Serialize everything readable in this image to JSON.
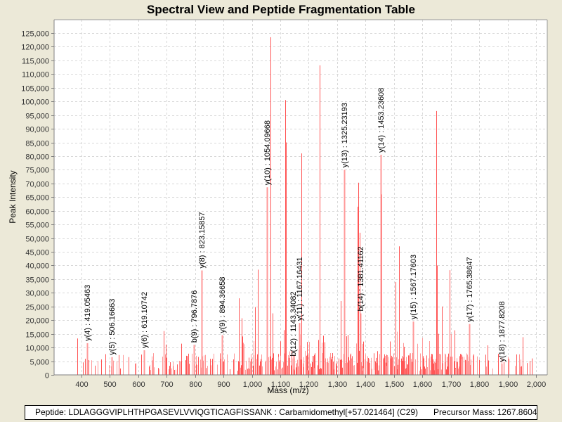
{
  "window": {
    "background": "#ECE9D8"
  },
  "info": {
    "peptide_label": "Peptide:",
    "peptide": "LDLAGGGVIPLHTHPGASEVLVVIQGTICAGFISSANK",
    "modification": "Carbamidomethyl[+57.021464] (C29)",
    "precursor_label": "Precursor Mass:",
    "precursor_mass": "1267.8604"
  },
  "chart_data": {
    "type": "bar",
    "subtype": "mass-spectrum-stick",
    "title": "Spectral View and Peptide Fragmentation Table",
    "xlabel": "Mass (m/z)",
    "ylabel": "Peak Intensity",
    "xlim": [
      303.6,
      2039.6
    ],
    "ylim": [
      0,
      129900
    ],
    "grid": true,
    "legend": "none",
    "x_ticks": [
      400,
      500,
      600,
      700,
      800,
      900,
      1000,
      1100,
      1200,
      1300,
      1400,
      1500,
      1600,
      1700,
      1800,
      1900,
      2000
    ],
    "x_tick_labels": [
      "400",
      "500",
      "600",
      "700",
      "800",
      "900",
      "1,000",
      "1,100",
      "1,200",
      "1,300",
      "1,400",
      "1,500",
      "1,600",
      "1,700",
      "1,800",
      "1,900",
      "2,000"
    ],
    "y_ticks": [
      0,
      5000,
      10000,
      15000,
      20000,
      25000,
      30000,
      35000,
      40000,
      45000,
      50000,
      55000,
      60000,
      65000,
      70000,
      75000,
      80000,
      85000,
      90000,
      95000,
      100000,
      105000,
      110000,
      115000,
      120000,
      125000
    ],
    "y_tick_labels": [
      "0",
      "5,000",
      "10,000",
      "15,000",
      "20,000",
      "25,000",
      "30,000",
      "35,000",
      "40,000",
      "45,000",
      "50,000",
      "55,000",
      "60,000",
      "65,000",
      "70,000",
      "75,000",
      "80,000",
      "85,000",
      "90,000",
      "95,000",
      "100,000",
      "105,000",
      "110,000",
      "115,000",
      "120,000",
      "125,000"
    ],
    "peak_color": "#FF5555",
    "peak_color_light": "#FF9999",
    "annotated_peaks": [
      {
        "label": "y(4) : 419.05463",
        "mz": 419.05,
        "intensity": 11600
      },
      {
        "label": "y(5) : 506.16663",
        "mz": 506.17,
        "intensity": 6500
      },
      {
        "label": "y(6) : 619.10742",
        "mz": 619.11,
        "intensity": 9000
      },
      {
        "label": "b(9) : 796.7876",
        "mz": 796.79,
        "intensity": 11000
      },
      {
        "label": "y(8) : 823.15857",
        "mz": 823.16,
        "intensity": 38200
      },
      {
        "label": "y(9) : 894.36658",
        "mz": 894.37,
        "intensity": 14500
      },
      {
        "label": "y(10) : 1054.09668",
        "mz": 1054.1,
        "intensity": 68600
      },
      {
        "label": "b(12) : 1143.34082",
        "mz": 1143.34,
        "intensity": 6000
      },
      {
        "label": "y(11) : 1167.16431",
        "mz": 1167.16,
        "intensity": 19000
      },
      {
        "label": "y(13) : 1325.23193",
        "mz": 1325.23,
        "intensity": 75000
      },
      {
        "label": "b(14) : 1381.41162",
        "mz": 1381.41,
        "intensity": 22500
      },
      {
        "label": "y(14) : 1453.23608",
        "mz": 1453.24,
        "intensity": 80500
      },
      {
        "label": "y(15) : 1567.17603",
        "mz": 1567.18,
        "intensity": 19500
      },
      {
        "label": "y(17) : 1765.38647",
        "mz": 1765.39,
        "intensity": 18600
      },
      {
        "label": "y(18) : 1877.8208",
        "mz": 1877.82,
        "intensity": 4000
      }
    ],
    "major_peaks": [
      {
        "mz": 384,
        "intensity": 13300
      },
      {
        "mz": 412,
        "intensity": 5900
      },
      {
        "mz": 426,
        "intensity": 5400
      },
      {
        "mz": 689,
        "intensity": 16000
      },
      {
        "mz": 697,
        "intensity": 11100
      },
      {
        "mz": 752,
        "intensity": 11400
      },
      {
        "mz": 955,
        "intensity": 28000
      },
      {
        "mz": 965,
        "intensity": 20700
      },
      {
        "mz": 1012,
        "intensity": 24800
      },
      {
        "mz": 1020,
        "intensity": 38500
      },
      {
        "mz": 1066,
        "intensity": 123500
      },
      {
        "mz": 1072,
        "intensity": 22500
      },
      {
        "mz": 1118,
        "intensity": 100500
      },
      {
        "mz": 1120,
        "intensity": 85000
      },
      {
        "mz": 1174,
        "intensity": 81000
      },
      {
        "mz": 1238,
        "intensity": 113200
      },
      {
        "mz": 1312,
        "intensity": 27000
      },
      {
        "mz": 1371,
        "intensity": 61500
      },
      {
        "mz": 1375,
        "intensity": 70300
      },
      {
        "mz": 1380,
        "intensity": 52000
      },
      {
        "mz": 1455,
        "intensity": 66000
      },
      {
        "mz": 1505,
        "intensity": 34000
      },
      {
        "mz": 1518,
        "intensity": 47000
      },
      {
        "mz": 1650,
        "intensity": 96500
      },
      {
        "mz": 1652,
        "intensity": 40000
      },
      {
        "mz": 1695,
        "intensity": 38300
      },
      {
        "mz": 1668,
        "intensity": 25000
      },
      {
        "mz": 1830,
        "intensity": 10800
      },
      {
        "mz": 1953,
        "intensity": 13800
      },
      {
        "mz": 1985,
        "intensity": 6000
      }
    ]
  }
}
